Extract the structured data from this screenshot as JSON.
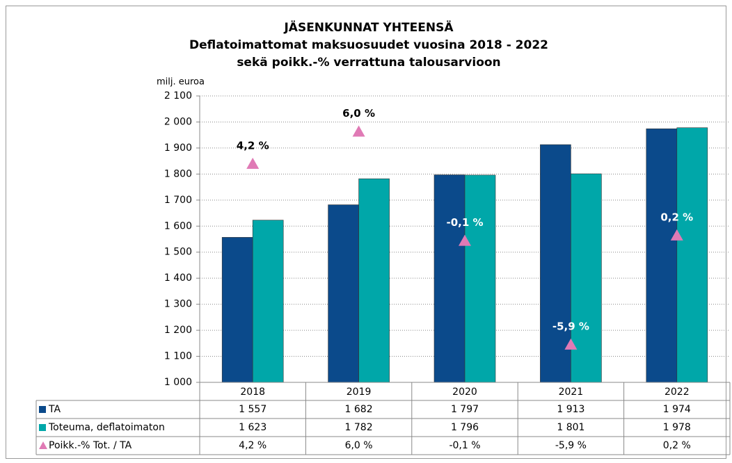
{
  "chart_data": {
    "type": "bar",
    "title": "JÄSENKUNNAT YHTEENSÄ",
    "subtitle": [
      "Deflatoimattomat maksuosuudet vuosina 2018 - 2022",
      "sekä poikk.-% verrattuna talousarvioon"
    ],
    "y_axis_label": "milj. euroa",
    "categories": [
      "2018",
      "2019",
      "2020",
      "2021",
      "2022"
    ],
    "series": [
      {
        "name": "TA",
        "color": "#0b4a8b",
        "values": [
          1557,
          1682,
          1797,
          1913,
          1974
        ],
        "value_labels": [
          "1 557",
          "1 682",
          "1 797",
          "1 913",
          "1 974"
        ]
      },
      {
        "name": "Toteuma, deflatoimaton",
        "color": "#00a7a9",
        "values": [
          1623,
          1782,
          1796,
          1801,
          1978
        ],
        "value_labels": [
          "1 623",
          "1 782",
          "1 796",
          "1 801",
          "1 978"
        ]
      },
      {
        "name": "Poikk.-% Tot. / TA",
        "color": "#e07ab5",
        "type": "marker",
        "axis": "y2",
        "values": [
          4.2,
          6.0,
          -0.1,
          -5.9,
          0.2
        ],
        "value_labels": [
          "4,2 %",
          "6,0 %",
          "-0,1 %",
          "-5,9 %",
          "0,2 %"
        ]
      }
    ],
    "ylim": [
      1000,
      2100
    ],
    "yticks": [
      {
        "value": 1000,
        "label": "1 000"
      },
      {
        "value": 1100,
        "label": "1 100"
      },
      {
        "value": 1200,
        "label": "1 200"
      },
      {
        "value": 1300,
        "label": "1 300"
      },
      {
        "value": 1400,
        "label": "1 400"
      },
      {
        "value": 1500,
        "label": "1 500"
      },
      {
        "value": 1600,
        "label": "1 600"
      },
      {
        "value": 1700,
        "label": "1 700"
      },
      {
        "value": 1800,
        "label": "1 800"
      },
      {
        "value": 1900,
        "label": "1 900"
      },
      {
        "value": 2000,
        "label": "2 000"
      },
      {
        "value": 2100,
        "label": "2 100"
      }
    ],
    "y2lim": [
      -8,
      8
    ],
    "grid": true
  }
}
